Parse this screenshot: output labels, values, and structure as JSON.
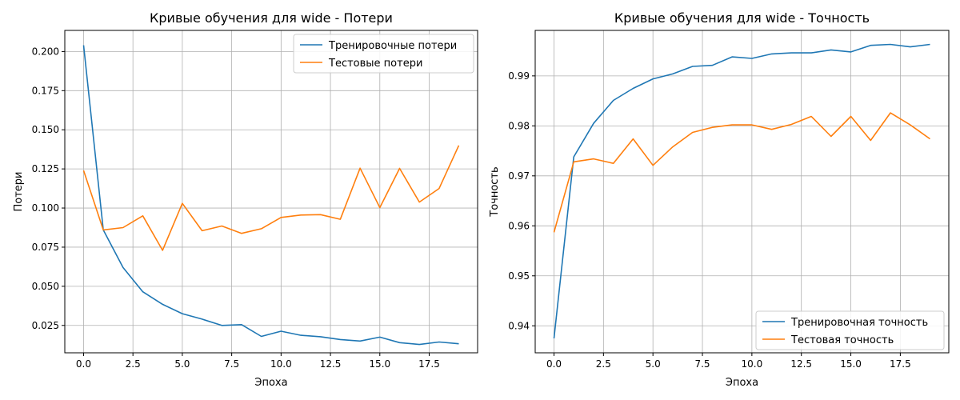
{
  "chart_data": [
    {
      "type": "line",
      "title": "Кривые обучения для wide - Потери",
      "xlabel": "Эпоха",
      "ylabel": "Потери",
      "xlim": [
        -0.95,
        19.95
      ],
      "ylim": [
        0.0075,
        0.2135
      ],
      "xticks": [
        0,
        2.5,
        5,
        7.5,
        10,
        12.5,
        15,
        17.5
      ],
      "xtick_labels": [
        "0.0",
        "2.5",
        "5.0",
        "7.5",
        "10.0",
        "12.5",
        "15.0",
        "17.5"
      ],
      "yticks": [
        0.025,
        0.05,
        0.075,
        0.1,
        0.125,
        0.15,
        0.175,
        0.2
      ],
      "ytick_labels": [
        "0.025",
        "0.050",
        "0.075",
        "0.100",
        "0.125",
        "0.150",
        "0.175",
        "0.200"
      ],
      "grid": true,
      "legend_position": "top-right",
      "x": [
        0,
        1,
        2,
        3,
        4,
        5,
        6,
        7,
        8,
        9,
        10,
        11,
        12,
        13,
        14,
        15,
        16,
        17,
        18,
        19
      ],
      "series": [
        {
          "name": "Тренировочные потери",
          "color": "#1f77b4",
          "values": [
            0.204,
            0.086,
            0.062,
            0.0465,
            0.0385,
            0.0325,
            0.029,
            0.025,
            0.0255,
            0.018,
            0.0213,
            0.0187,
            0.0178,
            0.016,
            0.015,
            0.0175,
            0.014,
            0.0128,
            0.0144,
            0.0133
          ]
        },
        {
          "name": "Тестовые потери",
          "color": "#ff7f0e",
          "values": [
            0.124,
            0.086,
            0.0875,
            0.095,
            0.073,
            0.103,
            0.0855,
            0.0885,
            0.0838,
            0.0868,
            0.094,
            0.0955,
            0.0958,
            0.0928,
            0.1255,
            0.1003,
            0.1253,
            0.1038,
            0.1125,
            0.14
          ]
        }
      ]
    },
    {
      "type": "line",
      "title": "Кривые обучения для wide - Точность",
      "xlabel": "Эпоха",
      "ylabel": "Точность",
      "xlim": [
        -0.95,
        19.95
      ],
      "ylim": [
        0.9346,
        0.9991
      ],
      "xticks": [
        0,
        2.5,
        5,
        7.5,
        10,
        12.5,
        15,
        17.5
      ],
      "xtick_labels": [
        "0.0",
        "2.5",
        "5.0",
        "7.5",
        "10.0",
        "12.5",
        "15.0",
        "17.5"
      ],
      "yticks": [
        0.94,
        0.95,
        0.96,
        0.97,
        0.98,
        0.99
      ],
      "ytick_labels": [
        "0.94",
        "0.95",
        "0.96",
        "0.97",
        "0.98",
        "0.99"
      ],
      "grid": true,
      "legend_position": "bottom-right",
      "x": [
        0,
        1,
        2,
        3,
        4,
        5,
        6,
        7,
        8,
        9,
        10,
        11,
        12,
        13,
        14,
        15,
        16,
        17,
        18,
        19
      ],
      "series": [
        {
          "name": "Тренировочная точность",
          "color": "#1f77b4",
          "values": [
            0.9375,
            0.9738,
            0.9805,
            0.9851,
            0.9875,
            0.9894,
            0.9904,
            0.9919,
            0.9921,
            0.9938,
            0.9935,
            0.9944,
            0.9946,
            0.9946,
            0.9952,
            0.9948,
            0.9961,
            0.9963,
            0.9958,
            0.9963
          ]
        },
        {
          "name": "Тестовая точность",
          "color": "#ff7f0e",
          "values": [
            0.9587,
            0.9728,
            0.9734,
            0.9725,
            0.9774,
            0.9721,
            0.9758,
            0.9787,
            0.9797,
            0.9802,
            0.9802,
            0.9793,
            0.9803,
            0.9819,
            0.9779,
            0.9819,
            0.9771,
            0.9826,
            0.9802,
            0.9774
          ]
        }
      ]
    }
  ]
}
